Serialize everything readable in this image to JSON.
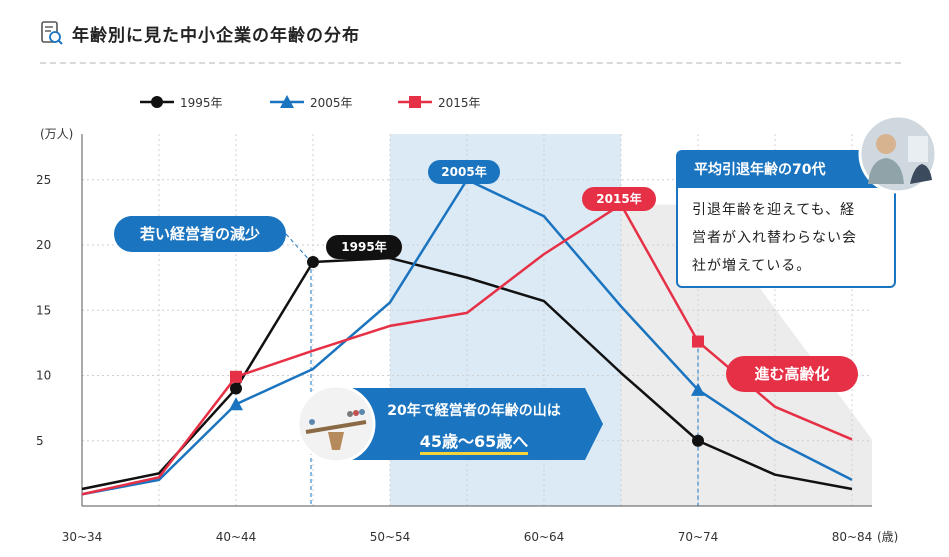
{
  "title": "年齢別に見た中小企業の年齢の分布",
  "colors": {
    "s1995": "#111111",
    "s2005": "#1b74bf",
    "s2015": "#e63046",
    "shade_blue": "#dceaf6",
    "shade_gray": "#ececec"
  },
  "chart_data": {
    "type": "line",
    "ylabel": "(万人)",
    "xunit": "(歳)",
    "ylim": [
      0,
      30
    ],
    "yticks": [
      5,
      10,
      15,
      20,
      25
    ],
    "x": [
      "30~34",
      "35~39",
      "40~44",
      "45~49",
      "50~54",
      "55~59",
      "60~64",
      "65~69",
      "70~74",
      "75~79",
      "80~84"
    ],
    "xtick_labels": [
      "30~34",
      "",
      "40~44",
      "",
      "50~54",
      "",
      "60~64",
      "",
      "70~74",
      "",
      "80~84"
    ],
    "series": [
      {
        "name": "1995年",
        "marker": "circle",
        "values": [
          1.3,
          2.5,
          9.0,
          18.7,
          19.0,
          17.5,
          15.7,
          10.2,
          5.0,
          2.4,
          1.3
        ]
      },
      {
        "name": "2005年",
        "marker": "triangle",
        "values": [
          0.9,
          2.0,
          7.8,
          10.5,
          15.6,
          25.0,
          22.2,
          15.3,
          8.9,
          5.0,
          2.0
        ]
      },
      {
        "name": "2015年",
        "marker": "square",
        "values": [
          0.9,
          2.2,
          9.9,
          11.9,
          13.8,
          14.8,
          19.3,
          23.1,
          12.6,
          7.6,
          5.1
        ]
      }
    ],
    "highlight_band": "50~64",
    "annotations": {
      "tag1995": "1995年",
      "tag2005": "2005年",
      "tag2015": "2015年",
      "young": "若い経営者の減少",
      "aging": "進む高齢化",
      "retire_title": "平均引退年齢の70代",
      "retire_lines": [
        "引退年齢を迎えても、経",
        "営者が入れ替わらない会",
        "社が増えている。"
      ],
      "banner_l1": "20年で経営者の年齢の山は",
      "banner_l2": "45歳〜65歳へ"
    }
  }
}
